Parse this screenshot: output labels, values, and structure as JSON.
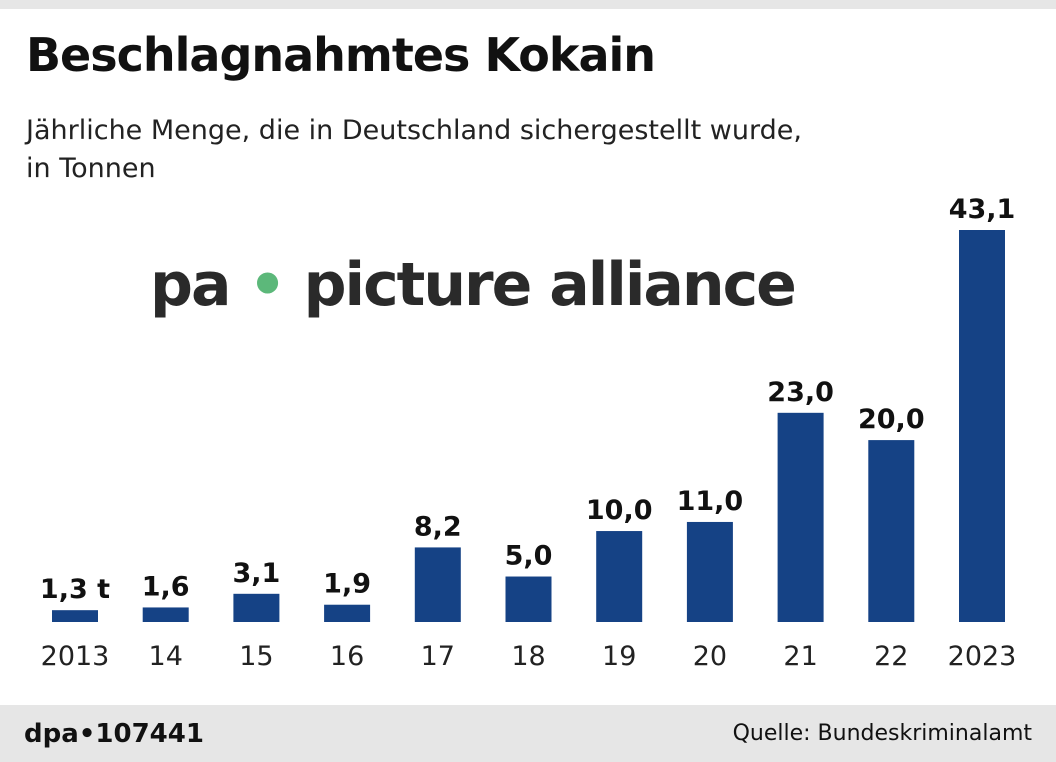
{
  "title": "Beschlagnahmtes Kokain",
  "subtitle_line1": "Jährliche Menge, die in Deutschland sichergestellt wurde,",
  "subtitle_line2": "in Tonnen",
  "footer": {
    "credit": "dpa•107441",
    "source": "Quelle: Bundeskriminalamt"
  },
  "watermark": {
    "left": "pa",
    "dot": "•",
    "right": "picture alliance"
  },
  "colors": {
    "bar": "#154285",
    "watermark_dot": "#5cb87a"
  },
  "chart_data": {
    "type": "bar",
    "title": "Beschlagnahmtes Kokain",
    "unit": "t",
    "categories": [
      "2013",
      "14",
      "15",
      "16",
      "17",
      "18",
      "19",
      "20",
      "21",
      "22",
      "2023"
    ],
    "values": [
      1.3,
      1.6,
      3.1,
      1.9,
      8.2,
      5.0,
      10.0,
      11.0,
      23.0,
      20.0,
      43.1
    ],
    "labels": [
      "1,3 t",
      "1,6",
      "3,1",
      "1,9",
      "8,2",
      "5,0",
      "10,0",
      "11,0",
      "23,0",
      "20,0",
      "43,1"
    ],
    "ylim": [
      0,
      43.1
    ],
    "grid": false
  }
}
